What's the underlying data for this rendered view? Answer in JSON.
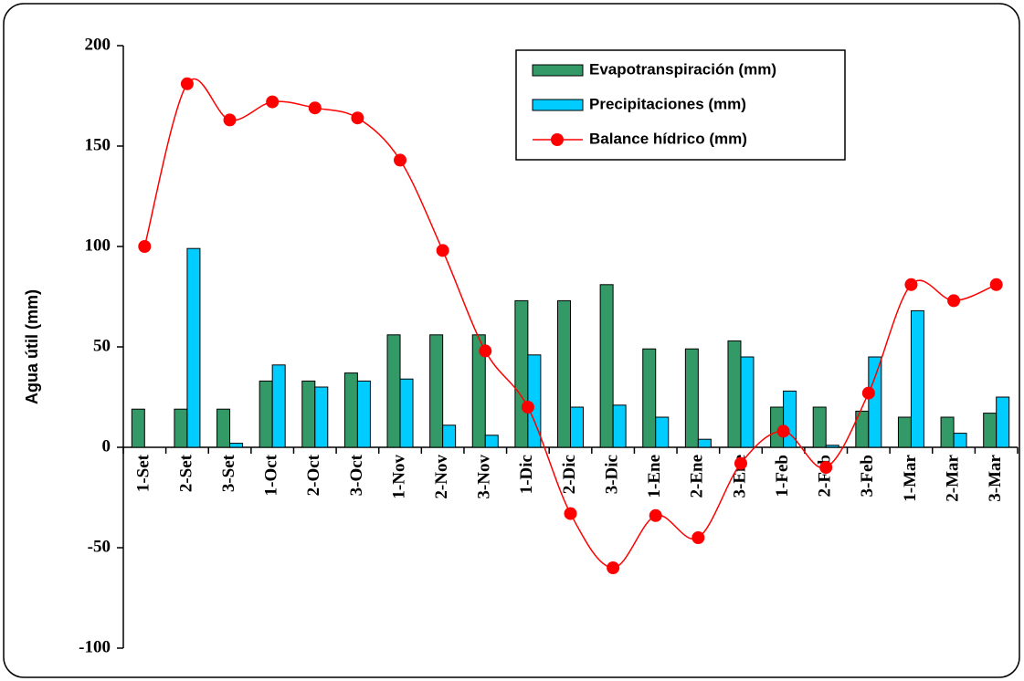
{
  "chart_data": {
    "type": "bar",
    "y_label": "Agua útil (mm)",
    "categories": [
      "1-Set",
      "2-Set",
      "3-Set",
      "1-Oct",
      "2-Oct",
      "3-Oct",
      "1-Nov",
      "2-Nov",
      "3-Nov",
      "1-Dic",
      "2-Dic",
      "3-Dic",
      "1-Ene",
      "2-Ene",
      "3-Ene",
      "1-Feb",
      "2-Feb",
      "3-Feb",
      "1-Mar",
      "2-Mar",
      "3-Mar"
    ],
    "series": [
      {
        "name": "Evapotranspiración (mm)",
        "type": "bar",
        "color": "#339966",
        "values": [
          19,
          19,
          19,
          33,
          33,
          37,
          56,
          56,
          56,
          73,
          73,
          81,
          49,
          49,
          53,
          20,
          20,
          18,
          15,
          15,
          17
        ]
      },
      {
        "name": "Precipitaciones (mm)",
        "type": "bar",
        "color": "#00ccff",
        "values": [
          0,
          99,
          2,
          41,
          30,
          33,
          34,
          11,
          6,
          46,
          20,
          21,
          15,
          4,
          45,
          28,
          1,
          45,
          68,
          7,
          25
        ]
      },
      {
        "name": "Balance hídrico (mm)",
        "type": "line",
        "color": "#ff0000",
        "values": [
          100,
          181,
          163,
          172,
          169,
          164,
          143,
          98,
          48,
          20,
          -33,
          -60,
          -34,
          -45,
          -8,
          8,
          -10,
          27,
          81,
          73,
          81
        ]
      }
    ],
    "ylim": [
      -100,
      200
    ],
    "yticks": [
      -100,
      -50,
      0,
      50,
      100,
      150,
      200
    ],
    "legend": "top-right"
  }
}
